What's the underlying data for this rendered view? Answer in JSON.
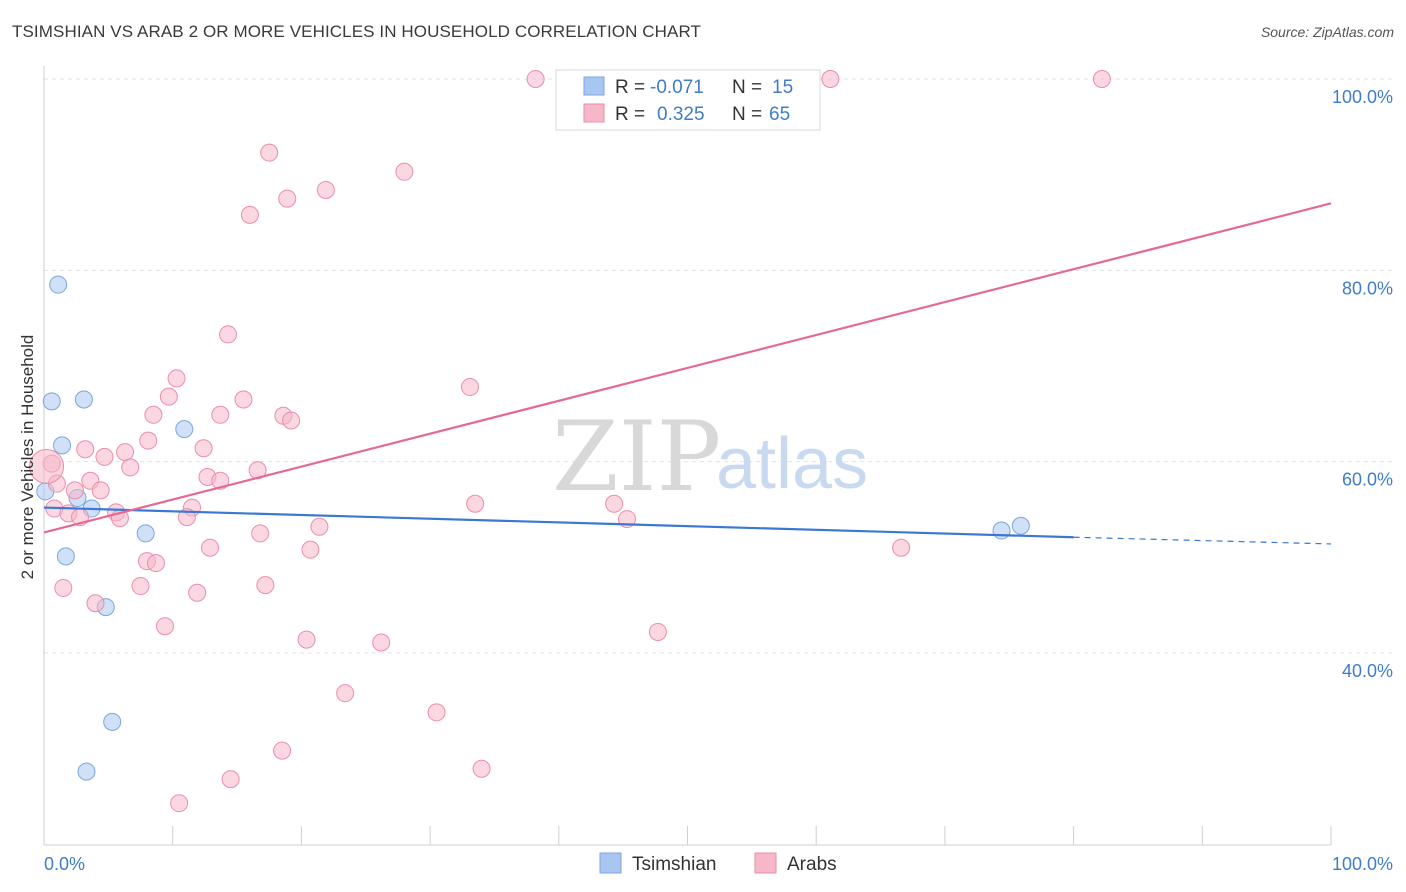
{
  "title": "TSIMSHIAN VS ARAB 2 OR MORE VEHICLES IN HOUSEHOLD CORRELATION CHART",
  "source": "Source: ZipAtlas.com",
  "watermark": {
    "zip": "ZIP",
    "atlas": "atlas"
  },
  "legend": {
    "r_label": "R =",
    "n_label": "N =",
    "rows": [
      {
        "r": "-0.071",
        "n": "15",
        "color": "#a9c6f0"
      },
      {
        "r": "0.325",
        "n": "65",
        "color": "#f6b7c9"
      }
    ]
  },
  "bottom_legend": [
    {
      "label": "Tsimshian",
      "color": "#a9c6f0"
    },
    {
      "label": "Arabs",
      "color": "#f6b7c9"
    }
  ],
  "chart_data": {
    "type": "scatter",
    "title": "TSIMSHIAN VS ARAB 2 OR MORE VEHICLES IN HOUSEHOLD CORRELATION CHART",
    "xlabel": "",
    "ylabel": "2 or more Vehicles in Household",
    "xlim": [
      0,
      100
    ],
    "ylim": [
      20,
      102
    ],
    "x_tick_labels": [
      "0.0%",
      "100.0%"
    ],
    "y_ticks": [
      {
        "value": 100,
        "label": "100.0%"
      },
      {
        "value": 80,
        "label": "80.0%"
      },
      {
        "value": 60,
        "label": "60.0%"
      },
      {
        "value": 40,
        "label": "40.0%"
      }
    ],
    "grid": true,
    "legend_position": "top-center",
    "series": [
      {
        "name": "Tsimshian",
        "color": "#a9c6f0",
        "stroke": "#7aa6e0",
        "trend": {
          "x0": 0,
          "y0": 55.2,
          "x1": 80,
          "y1": 52.1,
          "dashed_to_x": 100,
          "dashed_to_y": 51.4,
          "color": "#3a78d4"
        },
        "points": [
          [
            1.1,
            78.5
          ],
          [
            0.6,
            66.3
          ],
          [
            3.1,
            66.5
          ],
          [
            1.4,
            61.7
          ],
          [
            10.9,
            63.4
          ],
          [
            0.1,
            56.9
          ],
          [
            2.6,
            56.2
          ],
          [
            3.7,
            55.1
          ],
          [
            7.9,
            52.5
          ],
          [
            1.7,
            50.1
          ],
          [
            4.8,
            44.8
          ],
          [
            5.3,
            32.8
          ],
          [
            3.3,
            27.6
          ],
          [
            74.4,
            52.8
          ],
          [
            75.9,
            53.3
          ]
        ]
      },
      {
        "name": "Arabs",
        "color": "#f6b7c9",
        "stroke": "#ea8eab",
        "trend": {
          "x0": 0,
          "y0": 52.6,
          "x1": 100,
          "y1": 87.0,
          "color": "#e46a93"
        },
        "points": [
          [
            38.2,
            100
          ],
          [
            47.1,
            100
          ],
          [
            61.1,
            100
          ],
          [
            82.2,
            100
          ],
          [
            17.5,
            92.3
          ],
          [
            28.0,
            90.3
          ],
          [
            21.9,
            88.4
          ],
          [
            18.9,
            87.5
          ],
          [
            16.0,
            85.8
          ],
          [
            14.3,
            73.3
          ],
          [
            33.1,
            67.8
          ],
          [
            10.3,
            68.7
          ],
          [
            9.7,
            66.8
          ],
          [
            15.5,
            66.5
          ],
          [
            13.7,
            64.9
          ],
          [
            18.6,
            64.8
          ],
          [
            19.2,
            64.3
          ],
          [
            8.5,
            64.9
          ],
          [
            8.1,
            62.2
          ],
          [
            12.4,
            61.4
          ],
          [
            3.2,
            61.3
          ],
          [
            6.3,
            61.0
          ],
          [
            4.7,
            60.5
          ],
          [
            0.6,
            59.8
          ],
          [
            6.7,
            59.4
          ],
          [
            16.6,
            59.1
          ],
          [
            12.7,
            58.4
          ],
          [
            13.7,
            58.0
          ],
          [
            1.0,
            57.7
          ],
          [
            3.6,
            58.0
          ],
          [
            4.4,
            57.0
          ],
          [
            2.4,
            57.0
          ],
          [
            0.8,
            55.1
          ],
          [
            1.9,
            54.6
          ],
          [
            2.8,
            54.2
          ],
          [
            5.6,
            54.7
          ],
          [
            5.9,
            54.1
          ],
          [
            11.5,
            55.2
          ],
          [
            11.1,
            54.2
          ],
          [
            33.5,
            55.6
          ],
          [
            44.3,
            55.6
          ],
          [
            45.3,
            54.0
          ],
          [
            21.4,
            53.2
          ],
          [
            16.8,
            52.5
          ],
          [
            12.9,
            51.0
          ],
          [
            20.7,
            50.8
          ],
          [
            66.6,
            51.0
          ],
          [
            8.0,
            49.6
          ],
          [
            8.7,
            49.4
          ],
          [
            1.5,
            46.8
          ],
          [
            7.5,
            47.0
          ],
          [
            17.2,
            47.1
          ],
          [
            11.9,
            46.3
          ],
          [
            4.0,
            45.2
          ],
          [
            9.4,
            42.8
          ],
          [
            20.4,
            41.4
          ],
          [
            26.2,
            41.1
          ],
          [
            47.7,
            42.2
          ],
          [
            23.4,
            35.8
          ],
          [
            30.5,
            33.8
          ],
          [
            18.5,
            29.8
          ],
          [
            34.0,
            27.9
          ],
          [
            14.5,
            26.8
          ],
          [
            10.5,
            24.3
          ],
          [
            0.2,
            59.5
          ]
        ]
      }
    ]
  }
}
